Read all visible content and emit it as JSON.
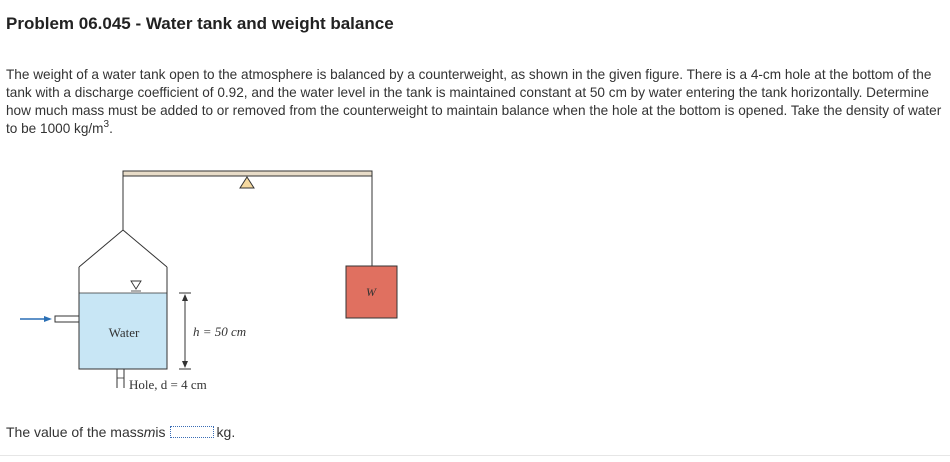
{
  "problem": {
    "title": "Problem 06.045 - Water tank and weight balance",
    "statement_main": "The weight of a water tank open to the atmosphere is balanced by a counterweight, as shown in the given figure. There is a 4-cm hole at the bottom of the tank with a discharge coefficient of 0.92, and the water level in the tank is maintained constant at 50 cm by water entering the tank horizontally. Determine how much mass must be added to or removed from the counterweight to maintain balance when the hole at the bottom is opened. Take the density of water to be 1000 kg/m",
    "statement_exponent": "3",
    "statement_end": "."
  },
  "figure": {
    "water_label": "Water",
    "height_label": "h = 50 cm",
    "hole_label": "Hole, d = 4 cm",
    "weight_label": "W",
    "colors": {
      "water": "#c8e6f5",
      "weight": "#e07060",
      "pivot": "#f5d9a0",
      "beam": "#e8dcc8",
      "inflow_arrow": "#2a6fb5",
      "line": "#333333"
    }
  },
  "answer": {
    "prefix": "The value of the mass ",
    "variable": "m",
    "is_text": " is",
    "value": "",
    "unit": "kg."
  }
}
